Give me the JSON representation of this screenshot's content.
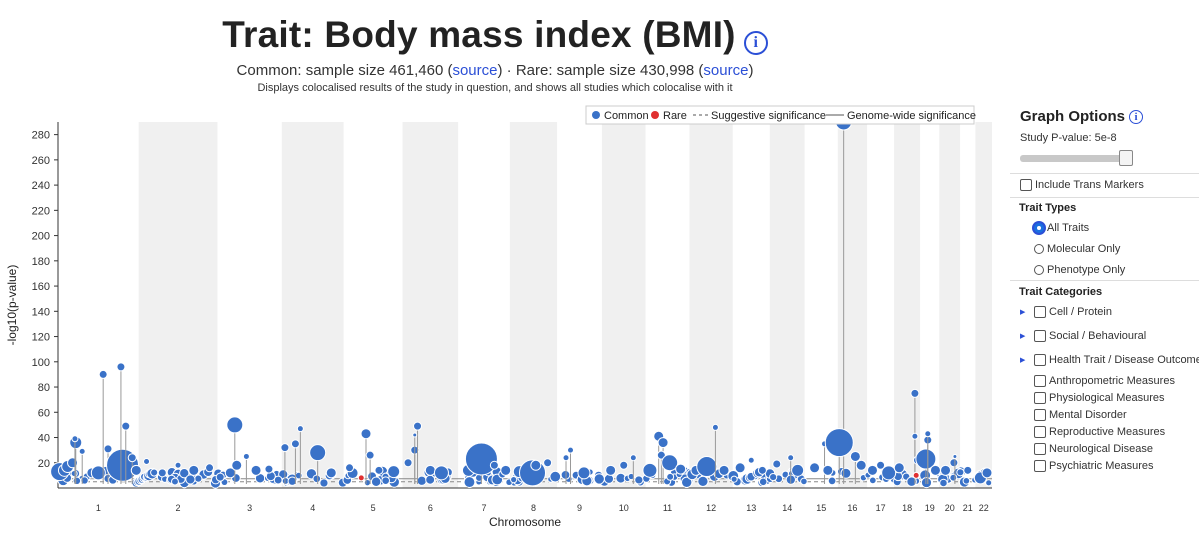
{
  "header": {
    "title": "Trait: Body mass index (BMI)",
    "info_glyph": "i",
    "subtitle_common": "Common: sample size 461,460 (",
    "source_link_common": "source",
    "subtitle_mid": ") · Rare: sample size 430,998 (",
    "source_link_rare": "source",
    "subtitle_end": ")",
    "description": "Displays colocalised results of the study in question, and shows all studies which colocalise with it"
  },
  "colors": {
    "common": "#3a72c8",
    "rare": "#e03030",
    "band": "#f0f0f0",
    "line": "#999999"
  },
  "chart_data": {
    "type": "scatter",
    "title": "",
    "xlabel": "Chromosome",
    "ylabel": "-log10(p-value)",
    "ylim": [
      0,
      290
    ],
    "yticks": [
      20,
      40,
      60,
      80,
      100,
      120,
      140,
      160,
      180,
      200,
      220,
      240,
      260,
      280
    ],
    "chromosomes": [
      "1",
      "2",
      "3",
      "4",
      "5",
      "6",
      "7",
      "8",
      "9",
      "10",
      "11",
      "12",
      "13",
      "14",
      "15",
      "16",
      "17",
      "18",
      "19",
      "20",
      "21",
      "22"
    ],
    "chromosome_lengths": [
      248,
      242,
      198,
      190,
      181,
      171,
      159,
      145,
      138,
      134,
      135,
      133,
      114,
      107,
      102,
      90,
      83,
      80,
      59,
      64,
      47,
      51
    ],
    "legend": {
      "common": "Common",
      "rare": "Rare",
      "suggestive": "Suggestive significance",
      "genome_wide": "Genome-wide significance"
    },
    "series": [
      {
        "name": "Common",
        "points": [
          {
            "chrom": "1",
            "pos": 0.02,
            "y": 13,
            "size": 9
          },
          {
            "chrom": "1",
            "pos": 0.08,
            "y": 14,
            "size": 6
          },
          {
            "chrom": "1",
            "pos": 0.12,
            "y": 17,
            "size": 6
          },
          {
            "chrom": "1",
            "pos": 0.18,
            "y": 20,
            "size": 5
          },
          {
            "chrom": "1",
            "pos": 0.22,
            "y": 36,
            "size": 6
          },
          {
            "chrom": "1",
            "pos": 0.21,
            "y": 39,
            "size": 3
          },
          {
            "chrom": "1",
            "pos": 0.3,
            "y": 29,
            "size": 3
          },
          {
            "chrom": "1",
            "pos": 0.42,
            "y": 12,
            "size": 5
          },
          {
            "chrom": "1",
            "pos": 0.5,
            "y": 12,
            "size": 7
          },
          {
            "chrom": "1",
            "pos": 0.56,
            "y": 90,
            "size": 4
          },
          {
            "chrom": "1",
            "pos": 0.62,
            "y": 31,
            "size": 4
          },
          {
            "chrom": "1",
            "pos": 0.68,
            "y": 18,
            "size": 5
          },
          {
            "chrom": "1",
            "pos": 0.8,
            "y": 18,
            "size": 16
          },
          {
            "chrom": "1",
            "pos": 0.78,
            "y": 96,
            "size": 4
          },
          {
            "chrom": "1",
            "pos": 0.84,
            "y": 49,
            "size": 4
          },
          {
            "chrom": "1",
            "pos": 0.92,
            "y": 24,
            "size": 4
          },
          {
            "chrom": "1",
            "pos": 0.97,
            "y": 14,
            "size": 5
          },
          {
            "chrom": "2",
            "pos": 0.1,
            "y": 21,
            "size": 3
          },
          {
            "chrom": "2",
            "pos": 0.3,
            "y": 12,
            "size": 4
          },
          {
            "chrom": "2",
            "pos": 0.5,
            "y": 18,
            "size": 3
          },
          {
            "chrom": "2",
            "pos": 0.7,
            "y": 14,
            "size": 5
          },
          {
            "chrom": "2",
            "pos": 0.9,
            "y": 16,
            "size": 4
          },
          {
            "chrom": "3",
            "pos": 0.2,
            "y": 12,
            "size": 5
          },
          {
            "chrom": "3",
            "pos": 0.27,
            "y": 50,
            "size": 8
          },
          {
            "chrom": "3",
            "pos": 0.3,
            "y": 18,
            "size": 5
          },
          {
            "chrom": "3",
            "pos": 0.45,
            "y": 25,
            "size": 3
          },
          {
            "chrom": "3",
            "pos": 0.6,
            "y": 14,
            "size": 5
          },
          {
            "chrom": "3",
            "pos": 0.8,
            "y": 15,
            "size": 4
          },
          {
            "chrom": "4",
            "pos": 0.05,
            "y": 32,
            "size": 4
          },
          {
            "chrom": "4",
            "pos": 0.22,
            "y": 35,
            "size": 4
          },
          {
            "chrom": "4",
            "pos": 0.3,
            "y": 47,
            "size": 3
          },
          {
            "chrom": "4",
            "pos": 0.58,
            "y": 28,
            "size": 8
          },
          {
            "chrom": "4",
            "pos": 0.8,
            "y": 12,
            "size": 5
          },
          {
            "chrom": "5",
            "pos": 0.1,
            "y": 16,
            "size": 4
          },
          {
            "chrom": "5",
            "pos": 0.38,
            "y": 43,
            "size": 5
          },
          {
            "chrom": "5",
            "pos": 0.45,
            "y": 26,
            "size": 4
          },
          {
            "chrom": "5",
            "pos": 0.6,
            "y": 14,
            "size": 4
          },
          {
            "chrom": "5",
            "pos": 0.85,
            "y": 13,
            "size": 6
          },
          {
            "chrom": "6",
            "pos": 0.1,
            "y": 20,
            "size": 4
          },
          {
            "chrom": "6",
            "pos": 0.22,
            "y": 30,
            "size": 4
          },
          {
            "chrom": "6",
            "pos": 0.27,
            "y": 49,
            "size": 4
          },
          {
            "chrom": "6",
            "pos": 0.22,
            "y": 42,
            "size": 2
          },
          {
            "chrom": "6",
            "pos": 0.5,
            "y": 14,
            "size": 5
          },
          {
            "chrom": "6",
            "pos": 0.7,
            "y": 12,
            "size": 7
          },
          {
            "chrom": "7",
            "pos": 0.2,
            "y": 14,
            "size": 6
          },
          {
            "chrom": "7",
            "pos": 0.45,
            "y": 23,
            "size": 16
          },
          {
            "chrom": "7",
            "pos": 0.7,
            "y": 18,
            "size": 4
          },
          {
            "chrom": "7",
            "pos": 0.92,
            "y": 14,
            "size": 5
          },
          {
            "chrom": "8",
            "pos": 0.2,
            "y": 13,
            "size": 6
          },
          {
            "chrom": "8",
            "pos": 0.48,
            "y": 12,
            "size": 13
          },
          {
            "chrom": "8",
            "pos": 0.55,
            "y": 18,
            "size": 5
          },
          {
            "chrom": "8",
            "pos": 0.8,
            "y": 20,
            "size": 4
          },
          {
            "chrom": "9",
            "pos": 0.2,
            "y": 24,
            "size": 3
          },
          {
            "chrom": "9",
            "pos": 0.3,
            "y": 30,
            "size": 3
          },
          {
            "chrom": "9",
            "pos": 0.6,
            "y": 12,
            "size": 6
          },
          {
            "chrom": "10",
            "pos": 0.2,
            "y": 14,
            "size": 5
          },
          {
            "chrom": "10",
            "pos": 0.5,
            "y": 18,
            "size": 4
          },
          {
            "chrom": "10",
            "pos": 0.72,
            "y": 24,
            "size": 3
          },
          {
            "chrom": "11",
            "pos": 0.1,
            "y": 14,
            "size": 7
          },
          {
            "chrom": "11",
            "pos": 0.3,
            "y": 41,
            "size": 5
          },
          {
            "chrom": "11",
            "pos": 0.4,
            "y": 36,
            "size": 5
          },
          {
            "chrom": "11",
            "pos": 0.36,
            "y": 26,
            "size": 4
          },
          {
            "chrom": "11",
            "pos": 0.55,
            "y": 20,
            "size": 8
          },
          {
            "chrom": "11",
            "pos": 0.8,
            "y": 15,
            "size": 5
          },
          {
            "chrom": "12",
            "pos": 0.15,
            "y": 14,
            "size": 5
          },
          {
            "chrom": "12",
            "pos": 0.4,
            "y": 17,
            "size": 10
          },
          {
            "chrom": "12",
            "pos": 0.6,
            "y": 48,
            "size": 3
          },
          {
            "chrom": "12",
            "pos": 0.8,
            "y": 14,
            "size": 5
          },
          {
            "chrom": "13",
            "pos": 0.2,
            "y": 16,
            "size": 5
          },
          {
            "chrom": "13",
            "pos": 0.5,
            "y": 22,
            "size": 3
          },
          {
            "chrom": "13",
            "pos": 0.8,
            "y": 14,
            "size": 4
          },
          {
            "chrom": "14",
            "pos": 0.2,
            "y": 19,
            "size": 4
          },
          {
            "chrom": "14",
            "pos": 0.6,
            "y": 24,
            "size": 3
          },
          {
            "chrom": "14",
            "pos": 0.8,
            "y": 14,
            "size": 6
          },
          {
            "chrom": "15",
            "pos": 0.3,
            "y": 16,
            "size": 5
          },
          {
            "chrom": "15",
            "pos": 0.6,
            "y": 35,
            "size": 3
          },
          {
            "chrom": "15",
            "pos": 0.7,
            "y": 14,
            "size": 5
          },
          {
            "chrom": "16",
            "pos": 0.2,
            "y": 290,
            "size": 8
          },
          {
            "chrom": "16",
            "pos": 0.05,
            "y": 36,
            "size": 14
          },
          {
            "chrom": "16",
            "pos": 0.6,
            "y": 25,
            "size": 5
          },
          {
            "chrom": "16",
            "pos": 0.8,
            "y": 18,
            "size": 5
          },
          {
            "chrom": "17",
            "pos": 0.2,
            "y": 14,
            "size": 5
          },
          {
            "chrom": "17",
            "pos": 0.5,
            "y": 18,
            "size": 4
          },
          {
            "chrom": "17",
            "pos": 0.8,
            "y": 12,
            "size": 7
          },
          {
            "chrom": "18",
            "pos": 0.2,
            "y": 16,
            "size": 5
          },
          {
            "chrom": "18",
            "pos": 0.8,
            "y": 75,
            "size": 4
          },
          {
            "chrom": "18",
            "pos": 0.8,
            "y": 41,
            "size": 3
          },
          {
            "chrom": "18",
            "pos": 0.9,
            "y": 22,
            "size": 4
          },
          {
            "chrom": "19",
            "pos": 0.3,
            "y": 23,
            "size": 10
          },
          {
            "chrom": "19",
            "pos": 0.4,
            "y": 38,
            "size": 4
          },
          {
            "chrom": "19",
            "pos": 0.4,
            "y": 43,
            "size": 3
          },
          {
            "chrom": "19",
            "pos": 0.8,
            "y": 14,
            "size": 5
          },
          {
            "chrom": "20",
            "pos": 0.3,
            "y": 14,
            "size": 5
          },
          {
            "chrom": "20",
            "pos": 0.7,
            "y": 20,
            "size": 4
          },
          {
            "chrom": "20",
            "pos": 0.75,
            "y": 25,
            "size": 2
          },
          {
            "chrom": "21",
            "pos": 0.5,
            "y": 14,
            "size": 4
          },
          {
            "chrom": "22",
            "pos": 0.3,
            "y": 8,
            "size": 6
          },
          {
            "chrom": "22",
            "pos": 0.7,
            "y": 12,
            "size": 5
          }
        ]
      },
      {
        "name": "Rare",
        "points": [
          {
            "chrom": "5",
            "pos": 0.3,
            "y": 8,
            "size": 3
          },
          {
            "chrom": "18",
            "pos": 0.85,
            "y": 10,
            "size": 3
          }
        ]
      }
    ]
  },
  "panel": {
    "title": "Graph Options",
    "pvalue_label": "Study P-value: 5e-8",
    "slider_value": 0.95,
    "trans_label": "Include Trans Markers",
    "trait_types_header": "Trait Types",
    "trait_types": [
      "All Traits",
      "Molecular Only",
      "Phenotype Only"
    ],
    "categories_header": "Trait Categories",
    "categories_expandable": [
      "Cell / Protein",
      "Social / Behavioural",
      "Health Trait / Disease Outcome"
    ],
    "categories_sub": [
      "Anthropometric Measures",
      "Physiological Measures",
      "Mental Disorder",
      "Reproductive Measures",
      "Neurological Disease",
      "Psychiatric Measures"
    ]
  }
}
